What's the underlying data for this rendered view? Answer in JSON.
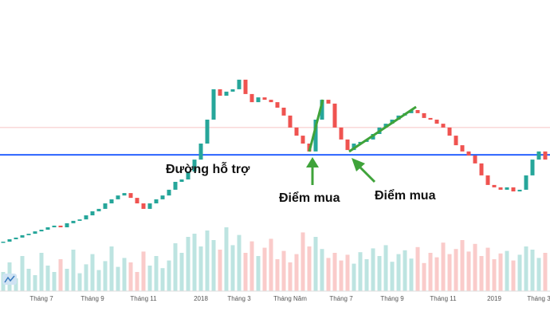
{
  "chart_data": {
    "type": "candlestick",
    "categories": [
      null,
      null,
      null,
      null,
      null,
      null,
      "Tháng 7",
      null,
      null,
      null,
      null,
      null,
      null,
      null,
      "Tháng 9",
      null,
      null,
      null,
      null,
      null,
      null,
      null,
      "Tháng 11",
      null,
      null,
      null,
      null,
      null,
      null,
      null,
      null,
      "2018",
      null,
      null,
      null,
      null,
      null,
      "Tháng 3",
      null,
      null,
      null,
      null,
      null,
      null,
      null,
      "Tháng Năm",
      null,
      null,
      null,
      null,
      null,
      null,
      null,
      "Tháng 7",
      null,
      null,
      null,
      null,
      null,
      null,
      null,
      "Tháng 9",
      null,
      null,
      null,
      null,
      null,
      null,
      null,
      "Tháng 11",
      null,
      null,
      null,
      null,
      null,
      null,
      null,
      "2019",
      null,
      null,
      null,
      null,
      null,
      null,
      "Tháng 3",
      null
    ],
    "open": [
      18.5,
      19.0,
      20.0,
      20.7,
      21.7,
      22.3,
      23.3,
      24.0,
      25.0,
      25.7,
      25.0,
      26.7,
      27.7,
      28.3,
      30.0,
      31.7,
      32.7,
      35.0,
      36.7,
      38.3,
      39.3,
      37.3,
      35.0,
      32.7,
      35.0,
      36.7,
      38.3,
      40.7,
      44.0,
      45.0,
      48.3,
      53.3,
      60.0,
      70.0,
      82.7,
      80.0,
      81.7,
      82.7,
      86.7,
      80.7,
      77.3,
      79.3,
      78.3,
      77.3,
      75.0,
      71.7,
      66.7,
      63.3,
      60.0,
      56.7,
      70.0,
      78.3,
      76.7,
      66.7,
      61.7,
      57.3,
      60.0,
      60.7,
      61.7,
      64.0,
      66.7,
      68.3,
      70.0,
      71.7,
      72.7,
      74.0,
      72.7,
      70.7,
      70.0,
      68.3,
      66.7,
      63.3,
      59.3,
      56.7,
      55.0,
      51.7,
      46.7,
      42.7,
      41.7,
      40.7,
      41.7,
      40.0,
      40.7,
      46.7,
      53.3,
      56.7
    ],
    "close": [
      19.0,
      20.0,
      20.7,
      21.7,
      22.3,
      23.3,
      24.0,
      25.0,
      25.7,
      25.0,
      26.7,
      27.7,
      28.3,
      30.0,
      31.7,
      32.7,
      35.0,
      36.7,
      38.3,
      39.3,
      37.3,
      35.0,
      32.7,
      35.0,
      36.7,
      38.3,
      40.7,
      44.0,
      45.0,
      48.3,
      53.3,
      60.0,
      70.0,
      82.7,
      80.0,
      81.7,
      82.7,
      86.7,
      80.7,
      77.3,
      79.3,
      78.3,
      77.3,
      75.0,
      71.7,
      66.7,
      63.3,
      60.0,
      56.7,
      70.0,
      78.3,
      76.7,
      66.7,
      61.7,
      57.3,
      60.0,
      60.7,
      61.7,
      64.0,
      66.7,
      68.3,
      70.0,
      71.7,
      72.7,
      74.0,
      72.7,
      70.7,
      70.0,
      68.3,
      66.7,
      63.3,
      59.3,
      56.7,
      55.0,
      51.7,
      46.7,
      42.7,
      41.7,
      40.7,
      41.7,
      40.0,
      40.7,
      46.7,
      53.3,
      56.7,
      53.3
    ],
    "volume": [
      30,
      45,
      20,
      55,
      35,
      25,
      60,
      40,
      30,
      50,
      35,
      65,
      28,
      42,
      58,
      33,
      47,
      70,
      38,
      52,
      45,
      30,
      62,
      40,
      55,
      36,
      48,
      75,
      60,
      85,
      90,
      70,
      95,
      80,
      65,
      100,
      72,
      88,
      60,
      78,
      55,
      68,
      82,
      50,
      63,
      45,
      58,
      92,
      70,
      85,
      66,
      52,
      60,
      48,
      57,
      43,
      61,
      50,
      67,
      55,
      72,
      46,
      58,
      64,
      51,
      69,
      44,
      60,
      53,
      76,
      58,
      66,
      80,
      62,
      74,
      55,
      68,
      50,
      59,
      63,
      48,
      57,
      70,
      65,
      52,
      60
    ],
    "ylim": [
      0,
      100
    ],
    "y2lim": [
      0,
      100
    ],
    "up_color": "#26a69a",
    "down_color": "#ef5350",
    "hlines": [
      {
        "value": 55.3,
        "color": "#2962ff"
      },
      {
        "value": 66.7,
        "color": "#f6c4c4"
      }
    ],
    "annotations": [
      "Đường hỗ trợ",
      "Điểm mua",
      "Điểm mua"
    ]
  }
}
